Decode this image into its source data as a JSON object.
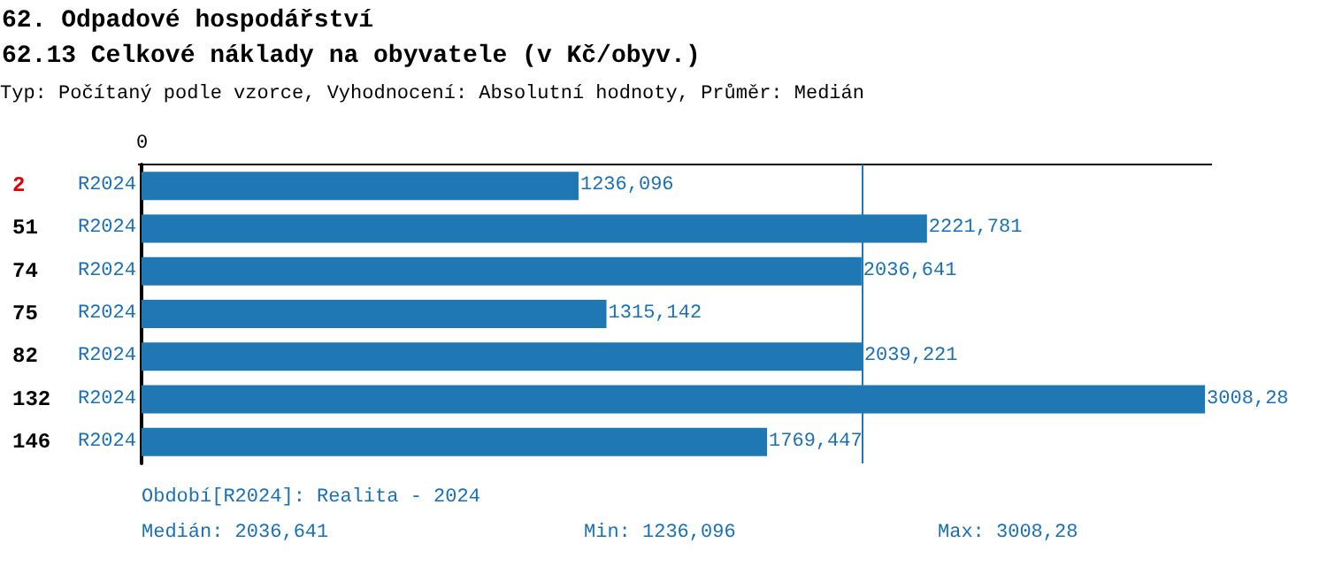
{
  "chart_data": {
    "type": "bar",
    "orientation": "horizontal",
    "title": "62. Odpadové hospodářství",
    "subtitle": "62.13 Celkové náklady na obyvatele (v Kč/obyv.)",
    "categories": [
      "2",
      "51",
      "74",
      "75",
      "82",
      "132",
      "146"
    ],
    "series": [
      {
        "name": "R2024",
        "color": "#1f77b4",
        "values": [
          1236.096,
          2221.781,
          2036.641,
          1315.142,
          2039.221,
          3008.28,
          1769.447
        ],
        "value_labels": [
          "1236,096",
          "2221,781",
          "2036,641",
          "1315,142",
          "2039,221",
          "3008,28",
          "1769,447"
        ]
      }
    ],
    "xlim": [
      0,
      3028
    ],
    "legend": false,
    "ref_lines": [
      {
        "axis": "x",
        "value": 2036.641,
        "color": "#1f77b4"
      }
    ],
    "annotations": [
      "0",
      "Typ: Počítaný podle vzorce, Vyhodnocení: Absolutní hodnoty, Průměr: Medián",
      "Období[R2024]: Realita - 2024",
      "Medián: 2036,641",
      "Min: 1236,096",
      "Max: 3008,28"
    ]
  }
}
